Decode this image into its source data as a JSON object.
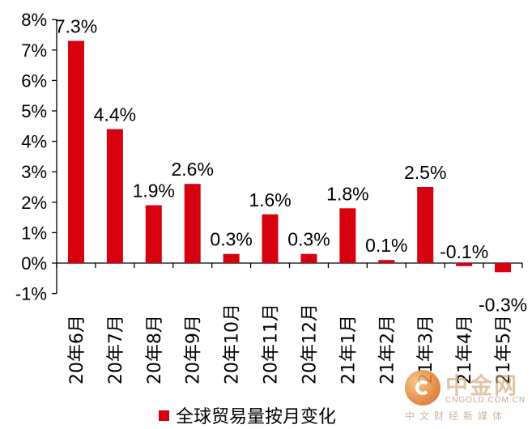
{
  "chart_data": {
    "type": "bar",
    "categories": [
      "20年6月",
      "20年7月",
      "20年8月",
      "20年9月",
      "20年10月",
      "20年11月",
      "20年12月",
      "21年1月",
      "21年2月",
      "21年3月",
      "21年4月",
      "21年5月"
    ],
    "series": [
      {
        "name": "全球贸易量按月变化",
        "values": [
          7.3,
          4.4,
          1.9,
          2.6,
          0.3,
          1.6,
          0.3,
          1.8,
          0.1,
          2.5,
          -0.1,
          -0.3
        ]
      }
    ],
    "data_labels": [
      "7.3%",
      "4.4%",
      "1.9%",
      "2.6%",
      "0.3%",
      "1.6%",
      "0.3%",
      "1.8%",
      "0.1%",
      "2.5%",
      "-0.1%",
      "-0.3%"
    ],
    "y_ticks": [
      -1,
      0,
      1,
      2,
      3,
      4,
      5,
      6,
      7,
      8
    ],
    "y_tick_labels": [
      "-1%",
      "0%",
      "1%",
      "2%",
      "3%",
      "4%",
      "5%",
      "6%",
      "7%",
      "8%"
    ],
    "ylim": [
      -1,
      8
    ],
    "title": "",
    "xlabel": "",
    "ylabel": "",
    "legend_position": "bottom",
    "bar_color": "#d7000f",
    "grid": false
  },
  "legend": {
    "label": "全球贸易量按月变化"
  },
  "watermark": {
    "title": "中金网",
    "url": "CNGOLD.COM.CN",
    "subtitle": "中文财经新媒体"
  }
}
